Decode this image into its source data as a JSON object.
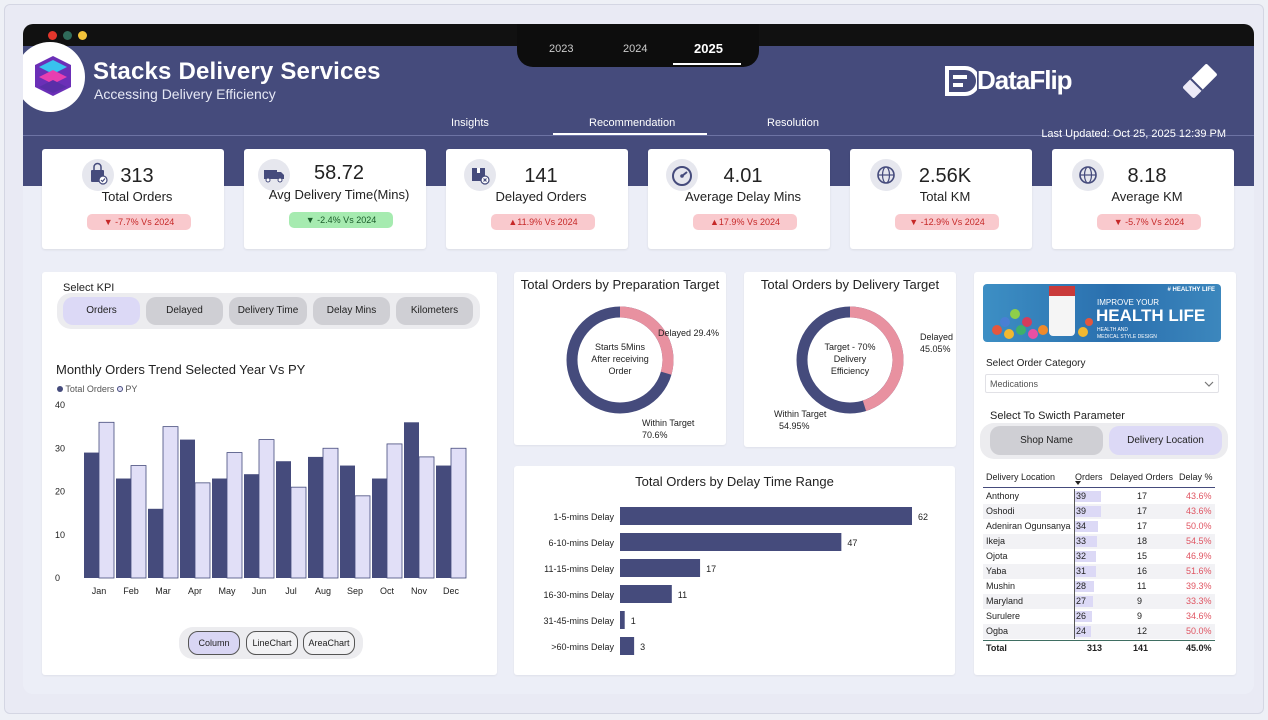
{
  "header": {
    "title": "Stacks Delivery Services",
    "subtitle": "Accessing Delivery Efficiency",
    "years": [
      "2023",
      "2024",
      "2025"
    ],
    "active_year": "2025",
    "tabs": [
      "Insights",
      "Recommendation",
      "Resolution"
    ],
    "active_tab": "Recommendation",
    "brand": "DataFlip",
    "last_updated": "Last Updated: Oct 25, 2025 12:39 PM"
  },
  "kpis": [
    {
      "value": "313",
      "label": "Total Orders",
      "change": "▼ -7.7% Vs 2024",
      "trend": "bad",
      "icon": "shopping-bag-icon"
    },
    {
      "value": "58.72",
      "label": "Avg Delivery Time(Mins)",
      "change": "▼ -2.4% Vs 2024",
      "trend": "good",
      "icon": "truck-icon"
    },
    {
      "value": "141",
      "label": "Delayed Orders",
      "change": "▲11.9% Vs 2024",
      "trend": "bad",
      "icon": "box-delay-icon"
    },
    {
      "value": "4.01",
      "label": "Average Delay Mins",
      "change": "▲17.9% Vs 2024",
      "trend": "bad",
      "icon": "speedometer-icon"
    },
    {
      "value": "2.56K",
      "label": "Total KM",
      "change": "▼ -12.9% Vs 2024",
      "trend": "bad",
      "icon": "globe-icon"
    },
    {
      "value": "8.18",
      "label": "Average KM",
      "change": "▼ -5.7% Vs 2024",
      "trend": "bad",
      "icon": "globe-icon"
    }
  ],
  "select_kpi": {
    "label": "Select KPI",
    "options": [
      "Orders",
      "Delayed",
      "Delivery Time",
      "Delay Mins",
      "Kilometers"
    ],
    "selected": "Orders"
  },
  "chart_types": {
    "options": [
      "Column",
      "LineChart",
      "AreaChart"
    ],
    "selected": "Column"
  },
  "colors": {
    "primary": "#454b7c",
    "py_fill": "#e1dff7",
    "delayed_pink": "#e891a0",
    "red_text": "#e05562",
    "header_bg": "#454b7c"
  },
  "chart_data": [
    {
      "type": "bar",
      "title": "Monthly Orders Trend Selected Year Vs PY",
      "categories": [
        "Jan",
        "Feb",
        "Mar",
        "Apr",
        "May",
        "Jun",
        "Jul",
        "Aug",
        "Sep",
        "Oct",
        "Nov",
        "Dec"
      ],
      "series": [
        {
          "name": "Total Orders",
          "values": [
            29,
            23,
            16,
            32,
            23,
            24,
            27,
            28,
            26,
            23,
            36,
            26
          ]
        },
        {
          "name": "PY",
          "values": [
            36,
            26,
            35,
            22,
            29,
            32,
            21,
            30,
            19,
            31,
            28,
            30
          ]
        }
      ],
      "ylim": [
        0,
        40
      ],
      "yticks": [
        0,
        10,
        20,
        30,
        40
      ],
      "legend": "top-left"
    },
    {
      "type": "pie",
      "title": "Total Orders by Preparation Target",
      "center_label": "Starts 5Mins After receiving Order",
      "slices": [
        {
          "label": "Delayed",
          "value": 29.4,
          "display": "Delayed 29.4%"
        },
        {
          "label": "Within Target",
          "value": 70.6,
          "display": "Within Target 70.6%"
        }
      ]
    },
    {
      "type": "pie",
      "title": "Total Orders by Delivery Target",
      "center_label": "Target - 70% Delivery Efficiency",
      "slices": [
        {
          "label": "Delayed",
          "value": 45.05,
          "display": "Delayed 45.05%"
        },
        {
          "label": "Within Target",
          "value": 54.95,
          "display": "Within Target 54.95%"
        }
      ]
    },
    {
      "type": "bar",
      "orientation": "horizontal",
      "title": "Total Orders by Delay Time Range",
      "categories": [
        "1-5-mins Delay",
        "6-10-mins Delay",
        "11-15-mins Delay",
        "16-30-mins Delay",
        "31-45-mins Delay",
        ">60-mins Delay"
      ],
      "values": [
        62,
        47,
        17,
        11,
        1,
        3
      ]
    }
  ],
  "order_category": {
    "label": "Select Order Category",
    "value": "Medications",
    "banner_tag": "# HEALTHY LIFE",
    "banner_small": "IMPROVE YOUR",
    "banner_big": "HEALTH LIFE",
    "banner_sub1": "HEALTH AND",
    "banner_sub2": "MEDICAL STYLE DESIGN"
  },
  "parameter": {
    "label": "Select To Swicth Parameter",
    "options": [
      "Shop Name",
      "Delivery Location"
    ],
    "selected": "Delivery Location"
  },
  "table": {
    "headers": [
      "Delivery Location",
      "Orders",
      "Delayed Orders",
      "Delay %"
    ],
    "rows": [
      {
        "loc": "Anthony",
        "orders": 39,
        "delayed": "17",
        "pct": "43.6%"
      },
      {
        "loc": "Oshodi",
        "orders": 39,
        "delayed": "17",
        "pct": "43.6%"
      },
      {
        "loc": "Adeniran Ogunsanya",
        "orders": 34,
        "delayed": "17",
        "pct": "50.0%"
      },
      {
        "loc": "Ikeja",
        "orders": 33,
        "delayed": "18",
        "pct": "54.5%"
      },
      {
        "loc": "Ojota",
        "orders": 32,
        "delayed": "15",
        "pct": "46.9%"
      },
      {
        "loc": "Yaba",
        "orders": 31,
        "delayed": "16",
        "pct": "51.6%"
      },
      {
        "loc": "Mushin",
        "orders": 28,
        "delayed": "11",
        "pct": "39.3%"
      },
      {
        "loc": "Maryland",
        "orders": 27,
        "delayed": "9",
        "pct": "33.3%"
      },
      {
        "loc": "Surulere",
        "orders": 26,
        "delayed": "9",
        "pct": "34.6%"
      },
      {
        "loc": "Ogba",
        "orders": 24,
        "delayed": "12",
        "pct": "50.0%"
      }
    ],
    "total": {
      "loc": "Total",
      "orders": "313",
      "delayed": "141",
      "pct": "45.0%"
    }
  }
}
